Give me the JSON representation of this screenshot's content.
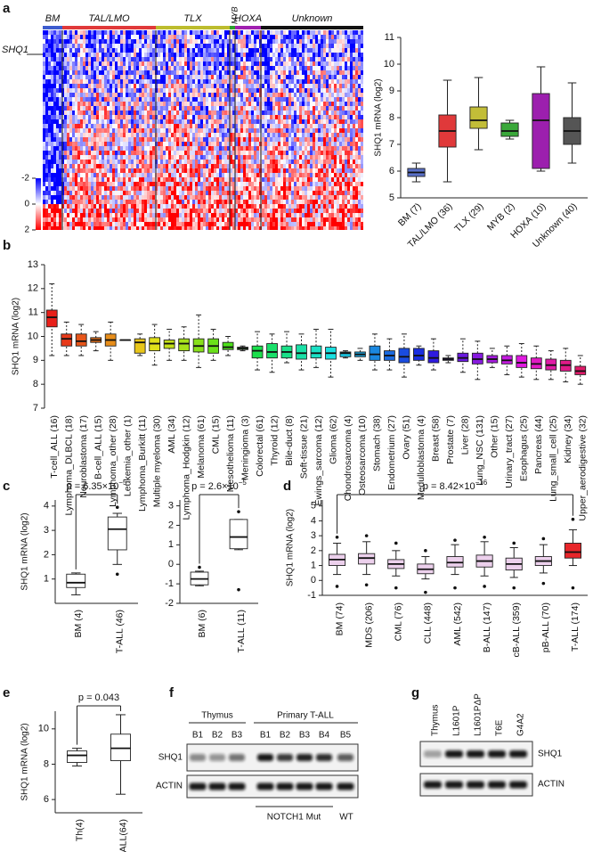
{
  "panel_labels": [
    "a",
    "b",
    "c",
    "d",
    "e",
    "f",
    "g"
  ],
  "heatmap": {
    "groups": [
      "BM",
      "TAL/LMO",
      "TLX",
      "MYB",
      "HOXA",
      "Unknown"
    ],
    "group_colors": [
      "#3d5ccf",
      "#e0393a",
      "#bcbc2e",
      "#2ca02c",
      "#a020b0",
      "#111111"
    ],
    "gene": "SHQ1",
    "clim": [
      -2,
      2
    ],
    "colorbar_ticks": [
      -2,
      0,
      2
    ]
  },
  "chart_data": [
    {
      "type": "box",
      "y_label": "SHQ1 mRNA (log2)",
      "categories": [
        "BM (7)",
        "TAL/LMO (36)",
        "TLX (29)",
        "MYB (2)",
        "HOXA (10)",
        "Unknown (40)"
      ],
      "values": [
        [
          5.6,
          5.8,
          5.95,
          6.1,
          6.3
        ],
        [
          5.6,
          6.9,
          7.5,
          8.1,
          9.4
        ],
        [
          6.8,
          7.6,
          7.9,
          8.4,
          9.5
        ],
        [
          7.2,
          7.3,
          7.5,
          7.8,
          7.9
        ],
        [
          6.0,
          6.1,
          7.9,
          8.9,
          9.9
        ],
        [
          6.3,
          7.0,
          7.5,
          8.0,
          9.3
        ]
      ],
      "colors": [
        "#5a70c8",
        "#e0393a",
        "#c2bd38",
        "#3aa83a",
        "#9c1fae",
        "#555555"
      ],
      "ylim": [
        5,
        11
      ],
      "yticks": [
        5,
        6,
        7,
        8,
        9,
        10,
        11
      ]
    },
    {
      "type": "box",
      "y_label": "SHQ1 mRNA (log2)",
      "categories": [
        "T-cell_ALL (16)",
        "Lymphoma_DLBCL (18)",
        "Neuroblastoma (17)",
        "B-cell_ALL (15)",
        "Lymphoma_other (28)",
        "Leukemia_other (1)",
        "Lymphoma_Burkitt (11)",
        "Multiple myeloma (30)",
        "AML (34)",
        "Lymphoma_Hodgkin (12)",
        "Melanoma (61)",
        "CML (15)",
        "Mesothelioma (11)",
        "Meningioma (3)",
        "Colorectal (61)",
        "Thyroid (12)",
        "Bile-duct (8)",
        "Soft-tissue (21)",
        "Ewings_sarcoma (12)",
        "Glioma (62)",
        "Chondrosarcoma (4)",
        "Osteosarcoma (10)",
        "Stomach (38)",
        "Endometrium (27)",
        "Ovary (51)",
        "Medulloblastoma (4)",
        "Breast (58)",
        "Prostate (7)",
        "Liver (28)",
        "Lung_NSC (131)",
        "Other (15)",
        "Urinary_tract (27)",
        "Esophagus (25)",
        "Pancreas (44)",
        "Lung_small_cell (25)",
        "Kidney (34)",
        "Upper_aerodigestive (32)"
      ],
      "values": [
        [
          9.2,
          10.4,
          10.8,
          11.1,
          12.2
        ],
        [
          9.2,
          9.6,
          9.9,
          10.1,
          10.6
        ],
        [
          9.2,
          9.6,
          9.8,
          10.1,
          10.5
        ],
        [
          9.4,
          9.75,
          9.85,
          9.95,
          10.2
        ],
        [
          9.0,
          9.6,
          9.85,
          10.1,
          10.6
        ],
        [
          9.85,
          9.85,
          9.85,
          9.85,
          9.85
        ],
        [
          9.2,
          9.3,
          9.75,
          9.9,
          10.1
        ],
        [
          8.8,
          9.4,
          9.7,
          9.95,
          10.5
        ],
        [
          9.0,
          9.5,
          9.7,
          9.85,
          10.3
        ],
        [
          9.0,
          9.4,
          9.7,
          9.9,
          10.4
        ],
        [
          8.7,
          9.35,
          9.6,
          9.9,
          10.9
        ],
        [
          9.0,
          9.3,
          9.6,
          9.9,
          10.3
        ],
        [
          9.2,
          9.45,
          9.55,
          9.75,
          10.0
        ],
        [
          9.4,
          9.45,
          9.5,
          9.55,
          9.6
        ],
        [
          8.6,
          9.1,
          9.4,
          9.6,
          10.2
        ],
        [
          8.5,
          9.1,
          9.35,
          9.7,
          10.1
        ],
        [
          8.9,
          9.1,
          9.35,
          9.6,
          10.2
        ],
        [
          8.6,
          9.05,
          9.3,
          9.65,
          10.1
        ],
        [
          8.7,
          9.1,
          9.3,
          9.6,
          10.3
        ],
        [
          8.3,
          9.05,
          9.3,
          9.55,
          10.3
        ],
        [
          9.1,
          9.15,
          9.3,
          9.35,
          9.4
        ],
        [
          9.0,
          9.15,
          9.25,
          9.35,
          9.5
        ],
        [
          8.6,
          9.0,
          9.25,
          9.6,
          10.1
        ],
        [
          8.6,
          9.0,
          9.2,
          9.4,
          9.9
        ],
        [
          8.3,
          8.9,
          9.15,
          9.5,
          10.1
        ],
        [
          8.8,
          9.0,
          9.2,
          9.5,
          9.6
        ],
        [
          8.6,
          8.9,
          9.1,
          9.4,
          9.9
        ],
        [
          8.9,
          9.0,
          9.05,
          9.1,
          9.2
        ],
        [
          8.5,
          8.95,
          9.1,
          9.3,
          9.9
        ],
        [
          8.2,
          8.85,
          9.05,
          9.3,
          9.8
        ],
        [
          8.7,
          8.9,
          9.05,
          9.2,
          9.5
        ],
        [
          8.4,
          8.85,
          9.0,
          9.2,
          9.6
        ],
        [
          8.3,
          8.7,
          8.9,
          9.2,
          9.7
        ],
        [
          8.2,
          8.65,
          8.85,
          9.1,
          9.6
        ],
        [
          8.2,
          8.6,
          8.8,
          9.05,
          9.4
        ],
        [
          8.1,
          8.55,
          8.8,
          9.0,
          9.5
        ],
        [
          8.0,
          8.4,
          8.55,
          8.75,
          9.2
        ]
      ],
      "colors": [
        "#e8201a",
        "#e83a1a",
        "#e8561a",
        "#e8721a",
        "#e88e1a",
        "#e8aa1a",
        "#e8c61a",
        "#e0e01a",
        "#c4e01a",
        "#a6e01a",
        "#88e01a",
        "#6ae01a",
        "#4ce01a",
        "#2ee02e",
        "#1ae04c",
        "#1ae06a",
        "#1ae088",
        "#1ae0a6",
        "#1ae0c4",
        "#1ae0e0",
        "#1ac4e0",
        "#1aa6e0",
        "#1a88e0",
        "#1a6ae0",
        "#1a4ce0",
        "#1a2ee0",
        "#2e1ae0",
        "#4c1ae0",
        "#6a1ae0",
        "#881ae0",
        "#a61ae0",
        "#c41ae0",
        "#e01ae0",
        "#e01ac4",
        "#e01aa6",
        "#e01a88",
        "#e01a6a"
      ],
      "ylim": [
        7,
        13
      ],
      "yticks": [
        7,
        8,
        9,
        10,
        11,
        12,
        13
      ]
    },
    {
      "type": "box",
      "y_label": "SHQ1 mRNA (log2)",
      "categories": [
        "BM (4)",
        "T-ALL (46)"
      ],
      "values": [
        [
          0.35,
          0.65,
          0.85,
          1.2,
          1.25
        ],
        [
          1.6,
          2.2,
          3.05,
          3.55,
          3.7
        ]
      ],
      "outliers": [
        [],
        [
          1.2,
          3.95
        ]
      ],
      "color": "#ffffff",
      "annotation": "p = 6.35×10",
      "annotation_exp": "−5",
      "ylim": [
        0,
        4.25
      ],
      "yticks": [
        1,
        2,
        3,
        4
      ]
    },
    {
      "type": "box",
      "categories": [
        "BM (6)",
        "T-ALL (11)"
      ],
      "values": [
        [
          -1.1,
          -1.05,
          -0.75,
          -0.4,
          -0.35
        ],
        [
          0.75,
          0.8,
          1.4,
          2.3,
          2.3
        ]
      ],
      "outliers": [
        [
          -0.15
        ],
        [
          -1.3,
          2.7
        ]
      ],
      "color": "#ffffff",
      "annotation": "p = 2.6×10",
      "annotation_exp": "−5",
      "ylim": [
        -2,
        3.3
      ],
      "yticks": [
        -2,
        -1,
        0,
        1,
        2,
        3
      ]
    },
    {
      "type": "box",
      "y_label": "SHQ1 mRNA (log2)",
      "categories": [
        "BM (74)",
        "MDS (206)",
        "CML (76)",
        "CLL (448)",
        "AML (542)",
        "B-ALL (147)",
        "cB-ALL (359)",
        "pB-ALL (70)",
        "T-ALL (174)"
      ],
      "values": [
        [
          0.4,
          1.0,
          1.4,
          1.75,
          2.5
        ],
        [
          0.4,
          1.1,
          1.5,
          1.8,
          2.6
        ],
        [
          0.3,
          0.8,
          1.1,
          1.4,
          2.0
        ],
        [
          0.1,
          0.45,
          0.75,
          1.1,
          1.6
        ],
        [
          0.4,
          0.9,
          1.2,
          1.6,
          2.4
        ],
        [
          0.3,
          0.9,
          1.3,
          1.7,
          2.6
        ],
        [
          0.2,
          0.7,
          1.1,
          1.5,
          2.2
        ],
        [
          0.5,
          1.0,
          1.3,
          1.6,
          2.4
        ],
        [
          1.0,
          1.5,
          1.9,
          2.5,
          3.4
        ]
      ],
      "outliers": [
        [
          -0.4,
          2.9
        ],
        [
          -0.3,
          3.0
        ],
        [
          -0.5,
          2.5
        ],
        [
          -0.8,
          2.0
        ],
        [
          -0.5,
          2.7
        ],
        [
          -0.4,
          2.9
        ],
        [
          -0.5,
          2.5
        ],
        [
          -0.2,
          2.8
        ],
        [
          -0.5,
          4.1
        ]
      ],
      "colors": [
        "#ecd0ec",
        "#ecd0ec",
        "#ecd0ec",
        "#ecd0ec",
        "#ecd0ec",
        "#ecd0ec",
        "#ecd0ec",
        "#ecd0ec",
        "#e8262a"
      ],
      "annotation": "p = 8.42×10",
      "annotation_exp": "−16",
      "ylim": [
        -1,
        5.4
      ],
      "yticks": [
        -1,
        0,
        1,
        2,
        3,
        4,
        5
      ]
    },
    {
      "type": "box",
      "y_label": "SHQ1 mRNA (log2)",
      "categories": [
        "Th(4)",
        "T-ALL(64)"
      ],
      "values": [
        [
          7.9,
          8.1,
          8.5,
          8.75,
          8.9
        ],
        [
          6.3,
          8.2,
          8.9,
          9.7,
          10.8
        ]
      ],
      "color": "#ffffff",
      "annotation": "p = 0.043",
      "ylim": [
        5.25,
        11
      ],
      "yticks": [
        6,
        8,
        10
      ]
    }
  ],
  "blot_f": {
    "groups": [
      "Thymus",
      "Primary T-ALL"
    ],
    "lanes": [
      "B1",
      "B2",
      "B3",
      "B1",
      "B2",
      "B3",
      "B4",
      "B5"
    ],
    "proteins": [
      "SHQ1",
      "ACTIN"
    ],
    "genotypes": [
      "NOTCH1 Mut",
      "WT"
    ]
  },
  "blot_g": {
    "lanes": [
      "Thymus",
      "L1601P",
      "L1601PΔP",
      "T6E",
      "G4A2"
    ],
    "proteins": [
      "SHQ1",
      "ACTIN"
    ]
  }
}
